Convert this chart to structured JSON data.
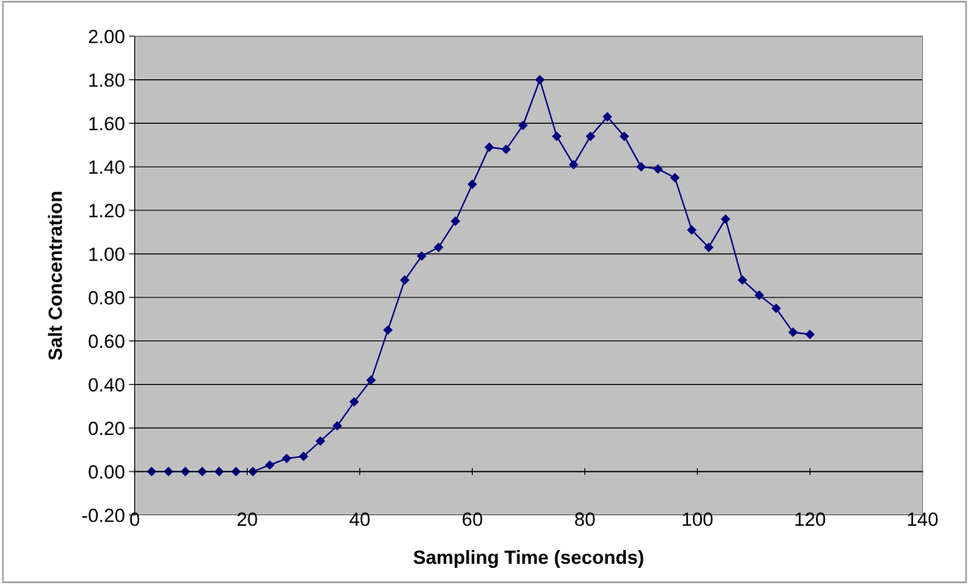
{
  "chart_data": {
    "type": "line",
    "xlabel": "Sampling Time (seconds)",
    "ylabel": "Salt Concentration",
    "x": [
      3,
      6,
      9,
      12,
      15,
      18,
      21,
      24,
      27,
      30,
      33,
      36,
      39,
      42,
      45,
      48,
      51,
      54,
      57,
      60,
      63,
      66,
      69,
      72,
      75,
      78,
      81,
      84,
      87,
      90,
      93,
      96,
      99,
      102,
      105,
      108,
      111,
      114,
      117,
      120
    ],
    "series": [
      {
        "color": "#000080",
        "values": [
          0,
          0,
          0,
          0,
          0,
          0,
          0,
          0.03,
          0.06,
          0.07,
          0.14,
          0.21,
          0.32,
          0.42,
          0.65,
          0.88,
          0.99,
          1.03,
          1.15,
          1.32,
          1.49,
          1.48,
          1.59,
          1.8,
          1.54,
          1.41,
          1.54,
          1.63,
          1.54,
          1.4,
          1.39,
          1.35,
          1.11,
          1.03,
          1.16,
          0.88,
          0.81,
          0.75,
          0.64,
          0.63
        ]
      }
    ],
    "xlim": [
      0,
      140
    ],
    "xticks": [
      0,
      20,
      40,
      60,
      80,
      100,
      120,
      140
    ],
    "ylim": [
      -0.2,
      2.0
    ],
    "yticks": [
      {
        "value": -0.2,
        "label": "-0.20"
      },
      {
        "value": 0,
        "label": "0.00"
      },
      {
        "value": 0.2,
        "label": "0.20"
      },
      {
        "value": 0.4,
        "label": "0.40"
      },
      {
        "value": 0.6,
        "label": "0.60"
      },
      {
        "value": 0.8,
        "label": "0.80"
      },
      {
        "value": 1.0,
        "label": "1.00"
      },
      {
        "value": 1.2,
        "label": "1.20"
      },
      {
        "value": 1.4,
        "label": "1.40"
      },
      {
        "value": 1.6,
        "label": "1.60"
      },
      {
        "value": 1.8,
        "label": "1.80"
      },
      {
        "value": 2.0,
        "label": "2.00"
      }
    ],
    "grid": "y",
    "marker": "diamond",
    "line_style": "solid"
  }
}
